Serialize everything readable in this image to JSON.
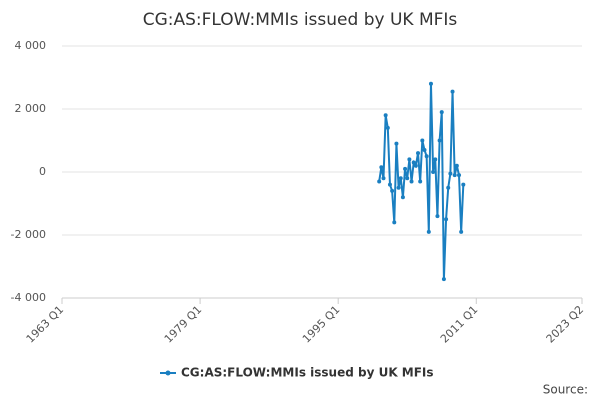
{
  "chart_data": {
    "type": "line",
    "title": "CG:AS:FLOW:MMIs issued by UK MFIs",
    "x": [
      "1999 Q4",
      "2000 Q1",
      "2000 Q2",
      "2000 Q3",
      "2000 Q4",
      "2001 Q1",
      "2001 Q2",
      "2001 Q3",
      "2001 Q4",
      "2002 Q1",
      "2002 Q2",
      "2002 Q3",
      "2002 Q4",
      "2003 Q1",
      "2003 Q2",
      "2003 Q3",
      "2003 Q4",
      "2004 Q1",
      "2004 Q2",
      "2004 Q3",
      "2004 Q4",
      "2005 Q1",
      "2005 Q2",
      "2005 Q3",
      "2005 Q4",
      "2006 Q1",
      "2006 Q2",
      "2006 Q3",
      "2006 Q4",
      "2007 Q1",
      "2007 Q2",
      "2007 Q3",
      "2007 Q4",
      "2008 Q1",
      "2008 Q2",
      "2008 Q3",
      "2008 Q4",
      "2009 Q1",
      "2009 Q2",
      "2009 Q3"
    ],
    "series": [
      {
        "name": "CG:AS:FLOW:MMIs issued by UK MFIs",
        "color": "#1a7fc1",
        "values": [
          -300,
          150,
          -200,
          1800,
          1400,
          -400,
          -600,
          -1600,
          900,
          -500,
          -200,
          -800,
          100,
          -200,
          400,
          -300,
          300,
          200,
          600,
          -300,
          1000,
          700,
          500,
          -1900,
          2800,
          0,
          400,
          -1400,
          1000,
          1900,
          -3400,
          -1500,
          -500,
          -50,
          2550,
          -100,
          200,
          -100,
          -1900,
          -400
        ]
      }
    ],
    "xlim": [
      "1963 Q1",
      "2023 Q2"
    ],
    "xticks": [
      "1963 Q1",
      "1979 Q1",
      "1995 Q1",
      "2011 Q1",
      "2023 Q2"
    ],
    "ylim": [
      -4000,
      4000
    ],
    "yticks": [
      {
        "value": 4000,
        "label": "4 000"
      },
      {
        "value": 2000,
        "label": "2 000"
      },
      0,
      {
        "value": -2000,
        "label": "-2 000"
      },
      {
        "value": -4000,
        "label": "-4 000"
      }
    ],
    "grid": true,
    "source": "Source:"
  }
}
